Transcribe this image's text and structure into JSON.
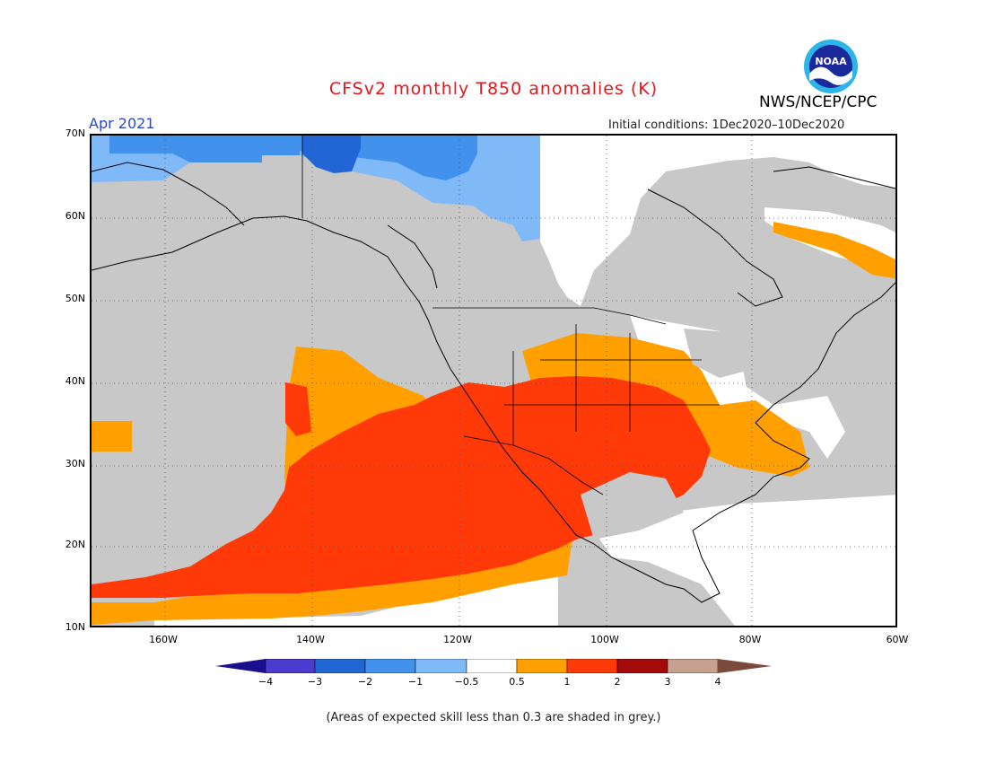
{
  "title": "CFSv2 monthly T850 anomalies (K)",
  "agency": "NWS/NCEP/CPC",
  "logo_text": "NOAA",
  "valid_month": "Apr 2021",
  "initial_conditions": "Initial conditions: 1Dec2020–10Dec2020",
  "footnote": "(Areas of expected skill less than 0.3 are shaded in grey.)",
  "lat_labels": [
    "70N",
    "60N",
    "50N",
    "40N",
    "30N",
    "20N",
    "10N"
  ],
  "lon_labels": [
    "160W",
    "140W",
    "120W",
    "100W",
    "80W",
    "60W"
  ],
  "colorbar": {
    "ticks": [
      "−4",
      "−3",
      "−2",
      "−1",
      "−0.5",
      "0.5",
      "1",
      "2",
      "3",
      "4"
    ],
    "colors": [
      "#1a0f8c",
      "#4b3bcf",
      "#2266d6",
      "#4191ed",
      "#80b9f7",
      "#ffffff",
      "#ffa000",
      "#ff3a08",
      "#a50a0a",
      "#c8a090",
      "#7a4a3a"
    ]
  },
  "map": {
    "lon_range": [
      -170,
      -60
    ],
    "lat_range": [
      10,
      70
    ],
    "skill_mask_color": "#c8c8c8",
    "categories": {
      "below_-1": "#80b9f7",
      "below_-2": "#4191ed",
      "below_-3": "#2266d6",
      "near_normal": "#ffffff",
      "above_0.5": "#ffa000",
      "above_1": "#ff3a08"
    }
  }
}
